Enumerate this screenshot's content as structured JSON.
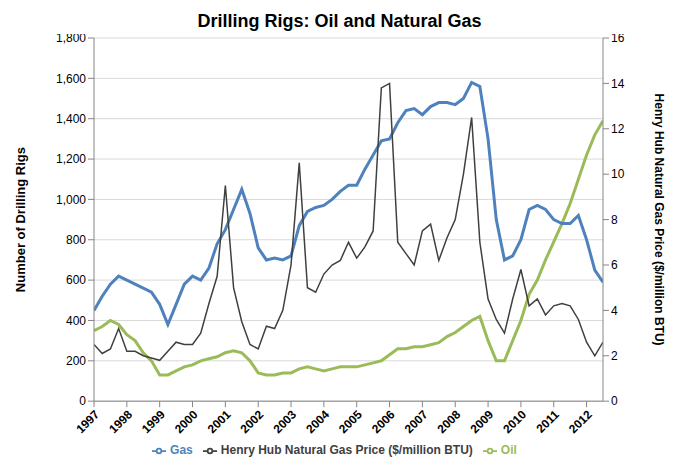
{
  "chart_data": {
    "type": "line",
    "title": "Drilling Rigs: Oil and Natural Gas",
    "y_label": "Number of Drilling Rigs",
    "y2_label": "Henry Hub Natural Gas Price ($/million BTU)",
    "x": [
      1997.0,
      1997.25,
      1997.5,
      1997.75,
      1998.0,
      1998.25,
      1998.5,
      1998.75,
      1999.0,
      1999.25,
      1999.5,
      1999.75,
      2000.0,
      2000.25,
      2000.5,
      2000.75,
      2001.0,
      2001.25,
      2001.5,
      2001.75,
      2002.0,
      2002.25,
      2002.5,
      2002.75,
      2003.0,
      2003.25,
      2003.5,
      2003.75,
      2004.0,
      2004.25,
      2004.5,
      2004.75,
      2005.0,
      2005.25,
      2005.5,
      2005.75,
      2006.0,
      2006.25,
      2006.5,
      2006.75,
      2007.0,
      2007.25,
      2007.5,
      2007.75,
      2008.0,
      2008.25,
      2008.5,
      2008.75,
      2009.0,
      2009.25,
      2009.5,
      2009.75,
      2010.0,
      2010.25,
      2010.5,
      2010.75,
      2011.0,
      2011.25,
      2011.5,
      2011.75,
      2012.0,
      2012.25,
      2012.5
    ],
    "series": [
      {
        "name": "Oil",
        "color": "#9bbb59",
        "values": [
          350,
          370,
          400,
          380,
          330,
          300,
          240,
          200,
          130,
          130,
          150,
          170,
          180,
          200,
          210,
          220,
          240,
          250,
          240,
          200,
          140,
          130,
          130,
          140,
          140,
          160,
          170,
          160,
          150,
          160,
          170,
          170,
          170,
          180,
          190,
          200,
          230,
          260,
          260,
          270,
          270,
          280,
          290,
          320,
          340,
          370,
          400,
          420,
          300,
          200,
          200,
          300,
          400,
          530,
          600,
          700,
          790,
          880,
          980,
          1100,
          1220,
          1320,
          1390
        ]
      },
      {
        "name": "Gas",
        "color": "#4f81bd",
        "values": [
          450,
          520,
          580,
          620,
          600,
          580,
          560,
          540,
          480,
          380,
          480,
          580,
          620,
          600,
          660,
          780,
          850,
          950,
          1050,
          930,
          760,
          700,
          710,
          700,
          720,
          870,
          940,
          960,
          970,
          1000,
          1040,
          1070,
          1070,
          1150,
          1220,
          1290,
          1300,
          1380,
          1440,
          1450,
          1420,
          1460,
          1480,
          1480,
          1470,
          1500,
          1580,
          1560,
          1300,
          900,
          700,
          720,
          800,
          950,
          970,
          950,
          900,
          880,
          880,
          920,
          800,
          650,
          590
        ]
      },
      {
        "name": "Henry Hub Natural Gas Price ($/million BTU)",
        "color": "#404040",
        "axis": "y2",
        "values": [
          2.5,
          2.1,
          2.3,
          3.2,
          2.2,
          2.2,
          2.0,
          1.9,
          1.8,
          2.2,
          2.6,
          2.5,
          2.5,
          3.0,
          4.3,
          5.5,
          9.5,
          5.0,
          3.5,
          2.5,
          2.3,
          3.3,
          3.2,
          4.0,
          6.0,
          10.5,
          5.0,
          4.8,
          5.6,
          6.0,
          6.2,
          7.0,
          6.3,
          6.8,
          7.5,
          13.8,
          14.0,
          7.0,
          6.5,
          6.0,
          7.5,
          7.8,
          6.2,
          7.2,
          8.0,
          10.0,
          12.5,
          7.0,
          4.5,
          3.6,
          3.0,
          4.5,
          5.8,
          4.2,
          4.5,
          3.8,
          4.2,
          4.3,
          4.2,
          3.6,
          2.6,
          2.0,
          2.6
        ]
      }
    ],
    "xlim": [
      1997,
      2012.5
    ],
    "xticks": [
      1997,
      1998,
      1999,
      2000,
      2001,
      2002,
      2003,
      2004,
      2005,
      2006,
      2007,
      2008,
      2009,
      2010,
      2011,
      2012
    ],
    "ylim": [
      0,
      1800
    ],
    "yticks": [
      0,
      200,
      400,
      600,
      800,
      {
        "value": 1000,
        "label": "1,000"
      },
      {
        "value": 1200,
        "label": "1,200"
      },
      {
        "value": 1400,
        "label": "1,400"
      },
      {
        "value": 1600,
        "label": "1,600"
      },
      {
        "value": 1800,
        "label": "1,800"
      }
    ],
    "y2lim": [
      0,
      16
    ],
    "y2ticks": [
      0,
      2,
      4,
      6,
      8,
      10,
      12,
      14,
      16
    ],
    "grid": true,
    "legend": "bottom"
  }
}
